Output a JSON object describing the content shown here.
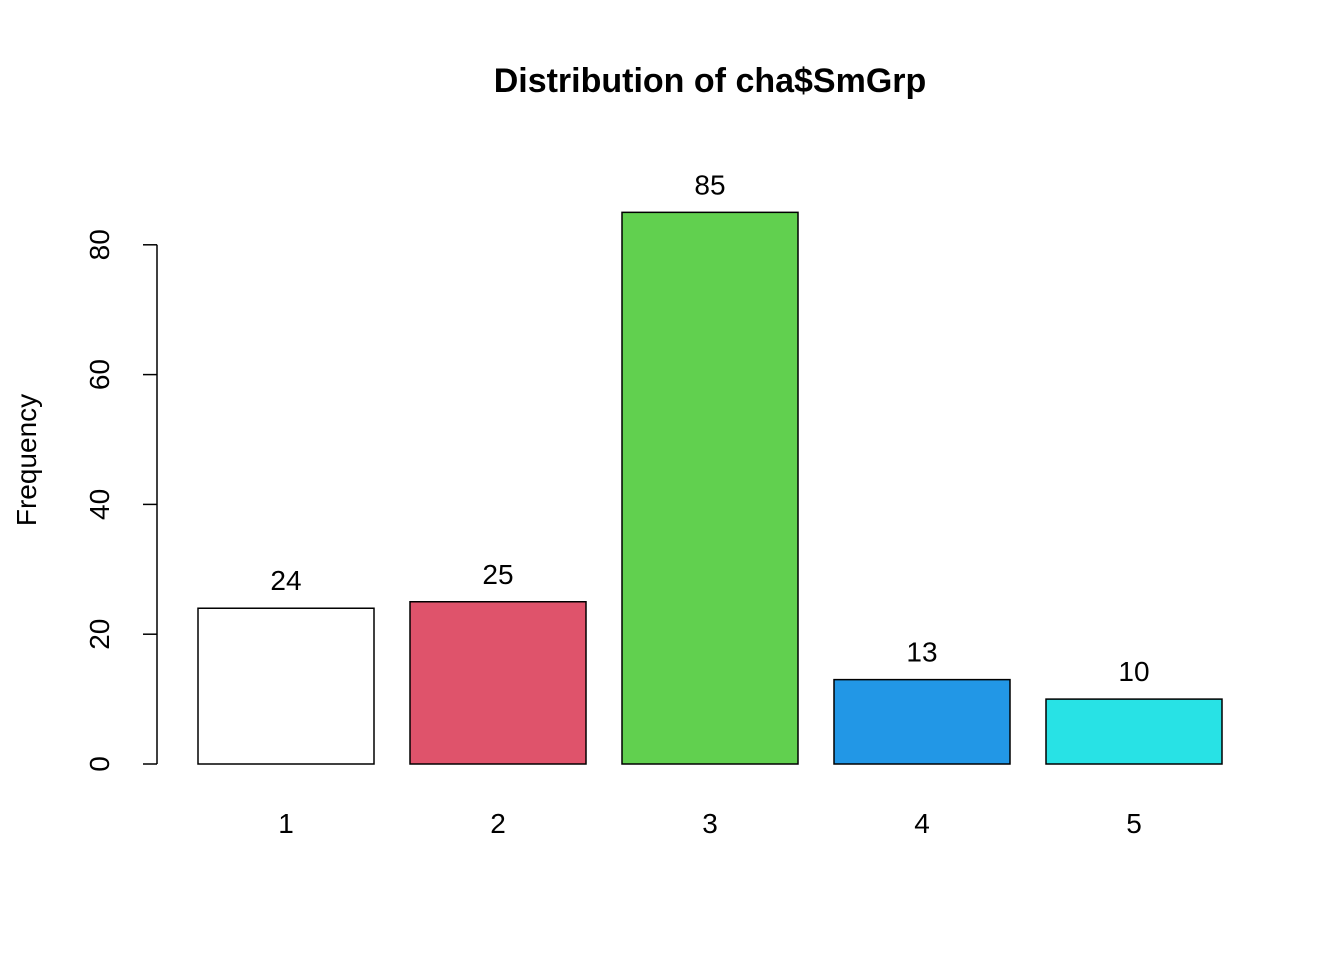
{
  "chart_data": {
    "type": "bar",
    "title": "Distribution of cha$SmGrp",
    "xlabel": "",
    "ylabel": "Frequency",
    "categories": [
      "1",
      "2",
      "3",
      "4",
      "5"
    ],
    "values": [
      24,
      25,
      85,
      13,
      10
    ],
    "value_labels": [
      "24",
      "25",
      "85",
      "13",
      "10"
    ],
    "colors": [
      "#ffffff",
      "#df536b",
      "#61d04f",
      "#2297e6",
      "#28e2e5"
    ],
    "ylim": [
      0,
      85
    ],
    "yticks": [
      0,
      20,
      40,
      60,
      80
    ],
    "ytick_labels": [
      "0",
      "20",
      "40",
      "60",
      "80"
    ],
    "grid": false,
    "legend": "none"
  }
}
